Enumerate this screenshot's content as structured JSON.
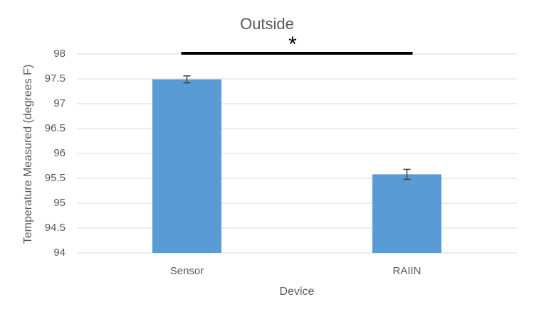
{
  "chart_data": {
    "type": "bar",
    "title": "Outside",
    "x_label": "Device",
    "y_label": "Temperature Measured (degrees F)",
    "categories": [
      "Sensor",
      "RAIIN"
    ],
    "values": [
      97.49,
      95.58
    ],
    "errors": [
      0.07,
      0.1
    ],
    "color": "#5b9bd5",
    "ylim": [
      94,
      98
    ],
    "yticks": [
      94,
      94.5,
      95,
      95.5,
      96,
      96.5,
      97,
      97.5,
      98
    ],
    "grid": true,
    "annotation": "*"
  }
}
